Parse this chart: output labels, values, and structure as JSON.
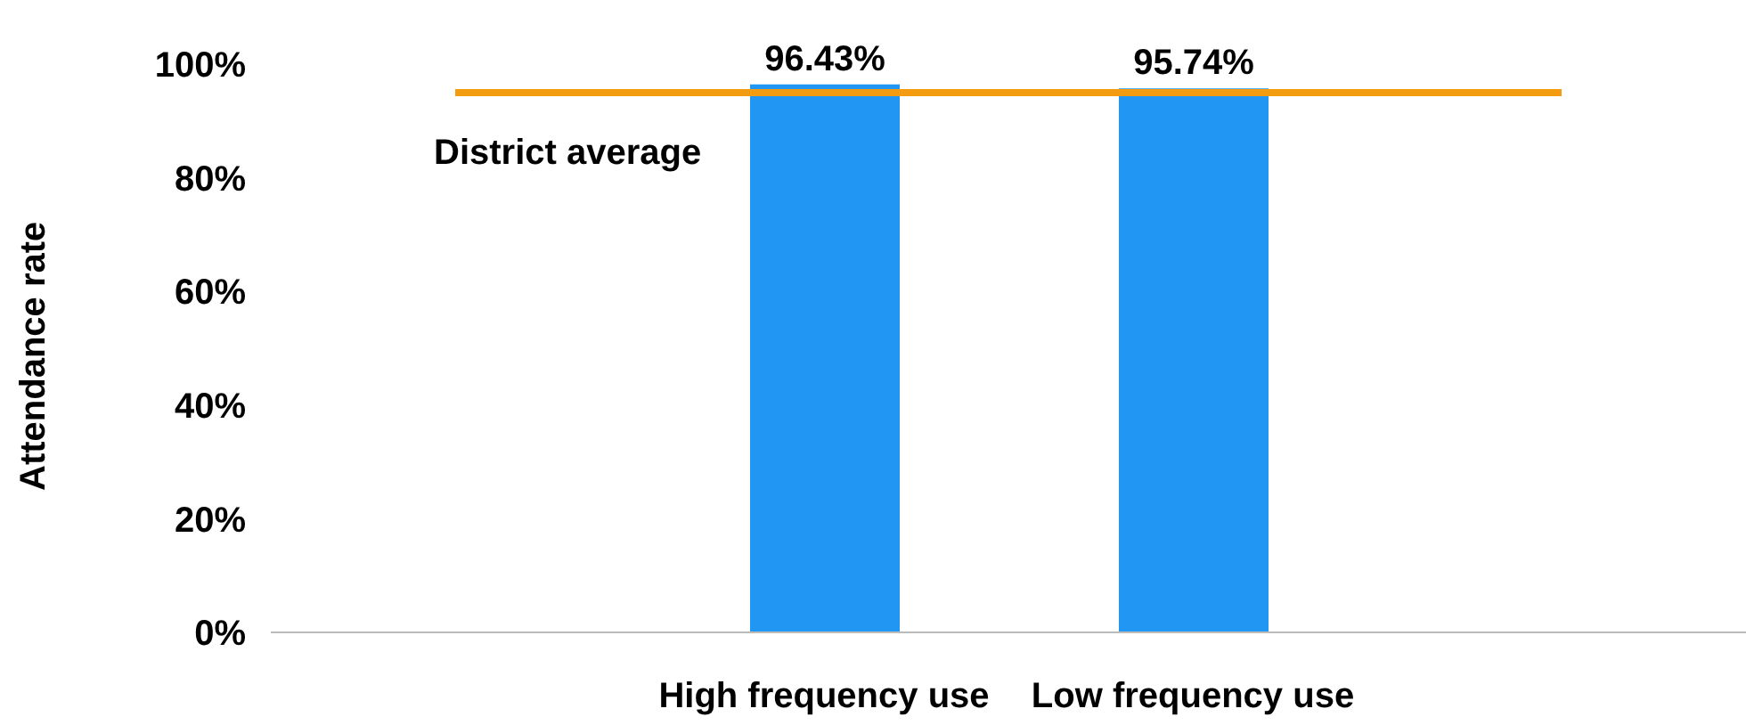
{
  "chart_data": {
    "type": "bar",
    "ylabel": "Attendance rate",
    "categories": [
      null,
      "High frequency use",
      "Low frequency use",
      null
    ],
    "series": [
      {
        "color": "#2196f3",
        "values": [
          null,
          96.43,
          95.74,
          null
        ],
        "value_labels": [
          null,
          "96.43%",
          "95.74%",
          null
        ]
      },
      {
        "type": "line",
        "name": "District average",
        "color": "#f39c12",
        "values": [
          95,
          95,
          95,
          95
        ]
      }
    ],
    "ylim": [
      0,
      100
    ],
    "yticks": [
      {
        "value": 0,
        "label": "0%"
      },
      {
        "value": 20,
        "label": "20%"
      },
      {
        "value": 40,
        "label": "40%"
      },
      {
        "value": 60,
        "label": "60%"
      },
      {
        "value": 80,
        "label": "80%"
      },
      {
        "value": 100,
        "label": "100%"
      }
    ],
    "grid": false,
    "legend": false,
    "marker": "none"
  }
}
